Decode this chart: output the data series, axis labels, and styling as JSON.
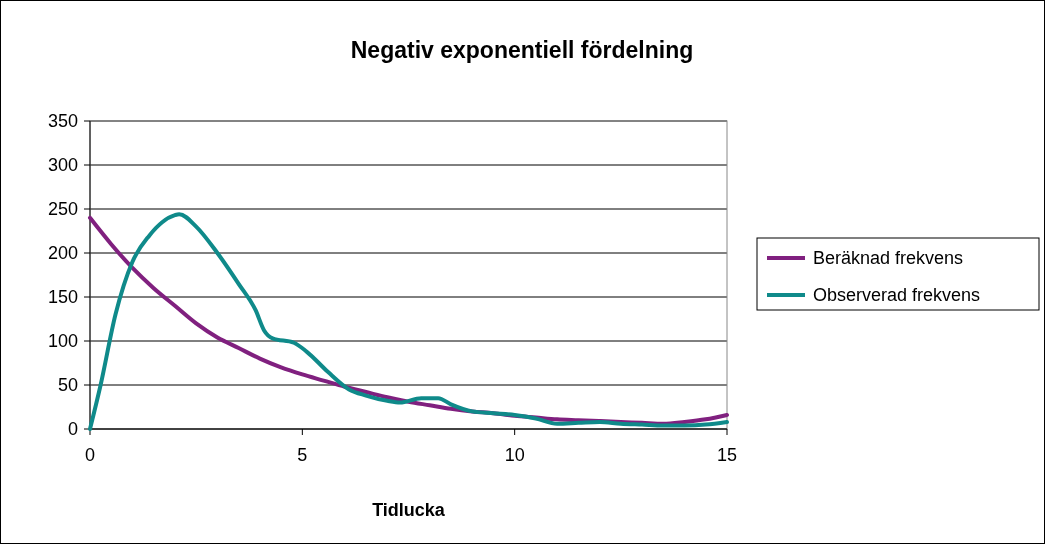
{
  "chart_data": {
    "type": "line",
    "title": "Negativ exponentiell fördelning",
    "xlabel": "Tidlucka",
    "xlim": [
      0,
      15
    ],
    "xticks": [
      0,
      5,
      10,
      15
    ],
    "ylim": [
      0,
      350
    ],
    "yticks": [
      0,
      50,
      100,
      150,
      200,
      250,
      300,
      350
    ],
    "grid": "y",
    "legend": "right",
    "line_style": "solid",
    "series": [
      {
        "name": "Beräknad frekvens",
        "color": "#80207f",
        "x": [
          0,
          0.5,
          1,
          1.5,
          2,
          2.5,
          3,
          3.5,
          4,
          4.5,
          5,
          5.5,
          6,
          6.5,
          7,
          7.5,
          8,
          8.5,
          9,
          9.5,
          10,
          10.5,
          11,
          11.5,
          12,
          12.5,
          13,
          13.5,
          14,
          14.5,
          15
        ],
        "values": [
          240,
          210,
          183,
          160,
          140,
          120,
          104,
          92,
          80,
          70,
          62,
          55,
          48,
          42,
          36,
          31,
          27,
          23,
          20,
          18,
          15,
          13,
          11,
          10,
          9,
          8,
          7,
          6,
          8,
          11,
          16
        ]
      },
      {
        "name": "Observerad frekvens",
        "color": "#0f8a8a",
        "x": [
          0,
          0.25,
          0.6,
          1,
          1.4,
          1.7,
          2,
          2.1,
          2.5,
          3,
          3.5,
          3.9,
          4.1,
          4.3,
          4.8,
          5.1,
          5.6,
          6.1,
          6.5,
          7,
          7.3,
          7.8,
          8.2,
          8.5,
          9,
          9.5,
          10,
          10.5,
          11,
          11.5,
          12,
          12.5,
          13,
          13.5,
          14,
          14.5,
          15
        ],
        "values": [
          0,
          50,
          130,
          190,
          220,
          235,
          243,
          244,
          230,
          200,
          165,
          135,
          112,
          103,
          98,
          88,
          65,
          45,
          38,
          32,
          30,
          35,
          35,
          28,
          20,
          18,
          16,
          12,
          6,
          7,
          8,
          6,
          5,
          4,
          4,
          5,
          8
        ]
      }
    ]
  }
}
